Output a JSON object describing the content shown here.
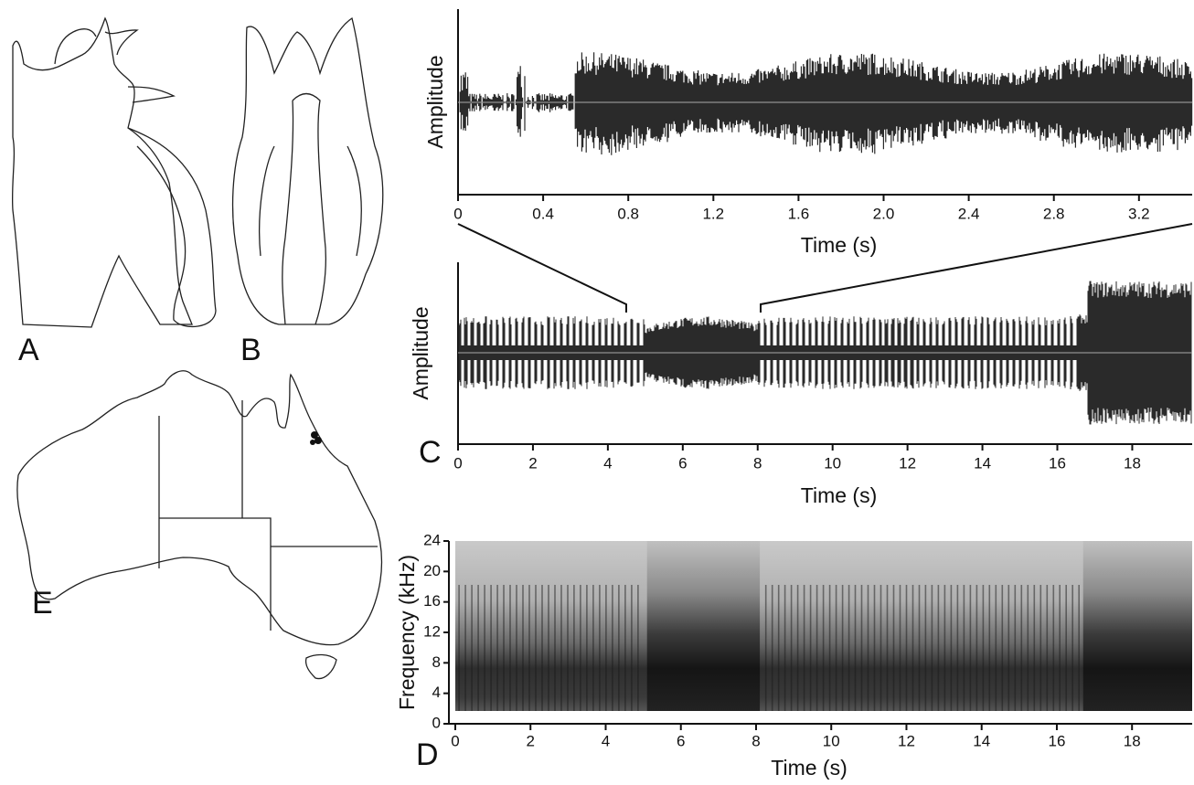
{
  "panel_letters": [
    "A",
    "B",
    "C",
    "D",
    "E"
  ],
  "waveform_top": {
    "ylabel": "Amplitude",
    "xlabel": "Time (s)",
    "xlim": [
      0,
      3.45
    ],
    "xticks": [
      0,
      0.4,
      0.8,
      1.2,
      1.6,
      {
        "value": 2,
        "label": "2.0"
      },
      2.4,
      2.8,
      3.2
    ]
  },
  "waveform_full": {
    "ylabel": "Amplitude",
    "xlabel": "Time (s)",
    "xlim": [
      0,
      19.6
    ],
    "xticks": [
      0,
      2,
      4,
      6,
      8,
      10,
      12,
      14,
      16,
      18
    ]
  },
  "spectrogram": {
    "ylabel": "Frequency (kHz)",
    "xlabel": "Time (s)",
    "xlim": [
      0,
      19.6
    ],
    "ylim": [
      0,
      24
    ],
    "xticks": [
      0,
      2,
      4,
      6,
      8,
      10,
      12,
      14,
      16,
      18
    ],
    "yticks": [
      0,
      4,
      8,
      12,
      16,
      20,
      24
    ]
  }
}
